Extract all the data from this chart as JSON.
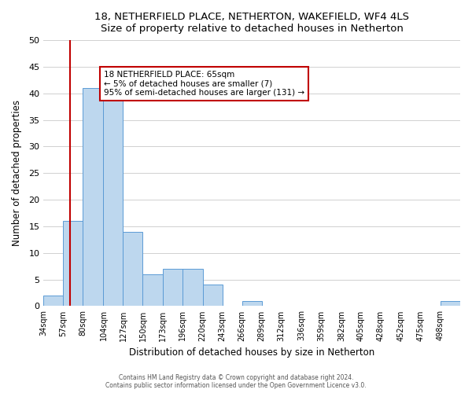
{
  "title": "18, NETHERFIELD PLACE, NETHERTON, WAKEFIELD, WF4 4LS",
  "subtitle": "Size of property relative to detached houses in Netherton",
  "xlabel": "Distribution of detached houses by size in Netherton",
  "ylabel": "Number of detached properties",
  "bar_edges": [
    34,
    57,
    80,
    104,
    127,
    150,
    173,
    196,
    220,
    243,
    266,
    289,
    312,
    336,
    359,
    382,
    405,
    428,
    452,
    475,
    498,
    521
  ],
  "bar_heights": [
    2,
    16,
    41,
    39,
    14,
    6,
    7,
    7,
    4,
    0,
    1,
    0,
    0,
    0,
    0,
    0,
    0,
    0,
    0,
    0,
    1
  ],
  "bar_color": "#bdd7ee",
  "bar_edge_color": "#5b9bd5",
  "vline_x": 65,
  "vline_color": "#c00000",
  "annotation_line1": "18 NETHERFIELD PLACE: 65sqm",
  "annotation_line2": "← 5% of detached houses are smaller (7)",
  "annotation_line3": "95% of semi-detached houses are larger (131) →",
  "annotation_box_color": "#c00000",
  "annotation_bg_color": "#ffffff",
  "ylim": [
    0,
    50
  ],
  "yticks": [
    0,
    5,
    10,
    15,
    20,
    25,
    30,
    35,
    40,
    45,
    50
  ],
  "tick_labels": [
    "34sqm",
    "57sqm",
    "80sqm",
    "104sqm",
    "127sqm",
    "150sqm",
    "173sqm",
    "196sqm",
    "220sqm",
    "243sqm",
    "266sqm",
    "289sqm",
    "312sqm",
    "336sqm",
    "359sqm",
    "382sqm",
    "405sqm",
    "428sqm",
    "452sqm",
    "475sqm",
    "498sqm"
  ],
  "footer_line1": "Contains HM Land Registry data © Crown copyright and database right 2024.",
  "footer_line2": "Contains public sector information licensed under the Open Government Licence v3.0.",
  "bg_color": "#ffffff",
  "grid_color": "#d0d0d0"
}
